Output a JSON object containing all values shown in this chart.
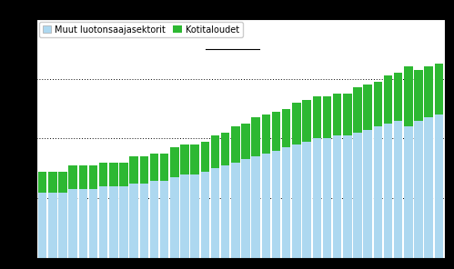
{
  "legend_labels": [
    "Muut luotonsaajasektorit",
    "Kotitaloudet"
  ],
  "colors": [
    "#add8f0",
    "#2db832"
  ],
  "background_color": "#000000",
  "plot_bg_color": "#ffffff",
  "muut_final": [
    22,
    22,
    22,
    23,
    23,
    23,
    24,
    24,
    24,
    25,
    25,
    26,
    26,
    27,
    28,
    28,
    29,
    30,
    31,
    32,
    33,
    34,
    35,
    36,
    37,
    38,
    39,
    40,
    40,
    41,
    41,
    42,
    43,
    44,
    45,
    46,
    44,
    46,
    47,
    48
  ],
  "koti_final": [
    7,
    7,
    7,
    8,
    8,
    8,
    8,
    8,
    8,
    9,
    9,
    9,
    9,
    10,
    10,
    10,
    10,
    11,
    11,
    12,
    12,
    13,
    13,
    13,
    13,
    14,
    14,
    14,
    14,
    14,
    14,
    15,
    15,
    15,
    16,
    16,
    20,
    17,
    17,
    17
  ],
  "ylim": [
    0,
    80
  ],
  "yticks": [
    0,
    20,
    40,
    60,
    80
  ]
}
